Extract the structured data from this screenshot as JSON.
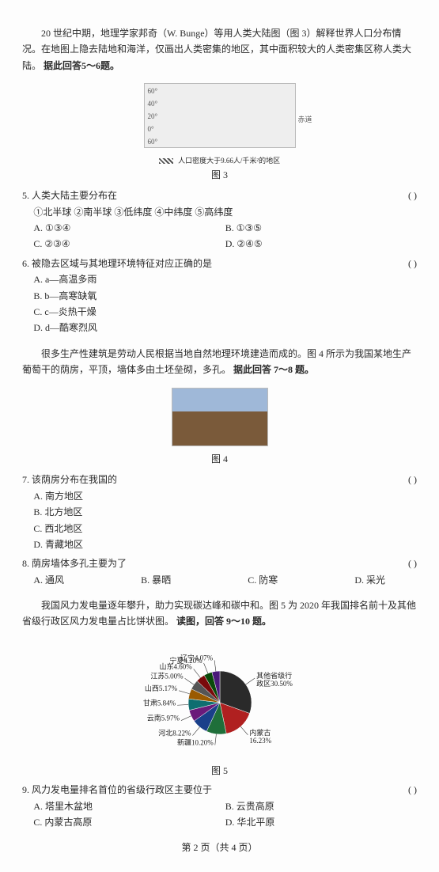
{
  "intro1": {
    "text": "20 世纪中期，地理学家邦奇（W. Bunge）等用人类大陆图（图 3）解释世界人口分布情况。在地图上隐去陆地和海洋，仅画出人类密集的地区，其中面积较大的人类密集区称人类大陆。",
    "bold": "据此回答5～6题。"
  },
  "fig3": {
    "caption": "图 3",
    "legend": "人口密度大于9.66人/千米²的地区"
  },
  "q5": {
    "stem": "5. 人类大陆主要分布在",
    "circles": "①北半球  ②南半球  ③低纬度  ④中纬度  ⑤高纬度",
    "A": "A. ①③④",
    "B": "B. ①③⑤",
    "C": "C. ②③④",
    "D": "D. ②④⑤",
    "paren": "(      )"
  },
  "q6": {
    "stem": "6. 被隐去区域与其地理环境特征对应正确的是",
    "A": "A. a—高温多雨",
    "B": "B. b—高寒缺氧",
    "C": "C. c—炎热干燥",
    "D": "D. d—酷寒烈风",
    "paren": "(      )"
  },
  "intro2": {
    "text": "很多生产性建筑是劳动人民根据当地自然地理环境建造而成的。图 4 所示为我国某地生产葡萄干的荫房，平顶，墙体多由土坯垒砌，多孔。",
    "bold": "据此回答 7～8 题。"
  },
  "fig4": {
    "caption": "图 4"
  },
  "q7": {
    "stem": "7. 该荫房分布在我国的",
    "A": "A. 南方地区",
    "B": "B. 北方地区",
    "C": "C. 西北地区",
    "D": "D. 青藏地区",
    "paren": "(      )"
  },
  "q8": {
    "stem": "8. 荫房墙体多孔主要为了",
    "A": "A. 通风",
    "B": "B. 暴晒",
    "C": "C. 防寒",
    "D": "D. 采光",
    "paren": "(      )"
  },
  "intro3": {
    "text": "我国风力发电量逐年攀升，助力实现碳达峰和碳中和。图 5 为 2020 年我国排名前十及其他省级行政区风力发电量占比饼状图。",
    "bold": "读图，回答 9～10 题。"
  },
  "pie": {
    "caption": "图 5",
    "colors": {
      "other": "#2a2a2a",
      "neimenggu": "#b02020",
      "xinjiang": "#1f6f3a",
      "hebei": "#1a3f8a",
      "yunnan": "#6a1a7a",
      "gansu": "#0e6e70",
      "shanxi": "#9a5a00",
      "jiangsu": "#555555",
      "shandong": "#7a0a0a",
      "ningxia": "#0a4a0a",
      "liaoning": "#4a1a7a"
    },
    "labels": {
      "other": "其他省级行\n政区30.50%",
      "neimenggu": "内蒙古\n16.23%",
      "xinjiang": "新疆10.20%",
      "hebei": "河北8.22%",
      "yunnan": "云南5.97%",
      "gansu": "甘肃5.84%",
      "shanxi": "山西5.17%",
      "jiangsu": "江苏5.00%",
      "shandong": "山东4.60%",
      "ningxia": "宁夏4.20%",
      "liaoning": "辽宁4.07%"
    }
  },
  "q9": {
    "stem": "9. 风力发电量排名首位的省级行政区主要位于",
    "A": "A. 塔里木盆地",
    "B": "B. 云贵高原",
    "C": "C. 内蒙古高原",
    "D": "D. 华北平原",
    "paren": "(      )"
  },
  "footer": "第 2 页（共 4 页）"
}
